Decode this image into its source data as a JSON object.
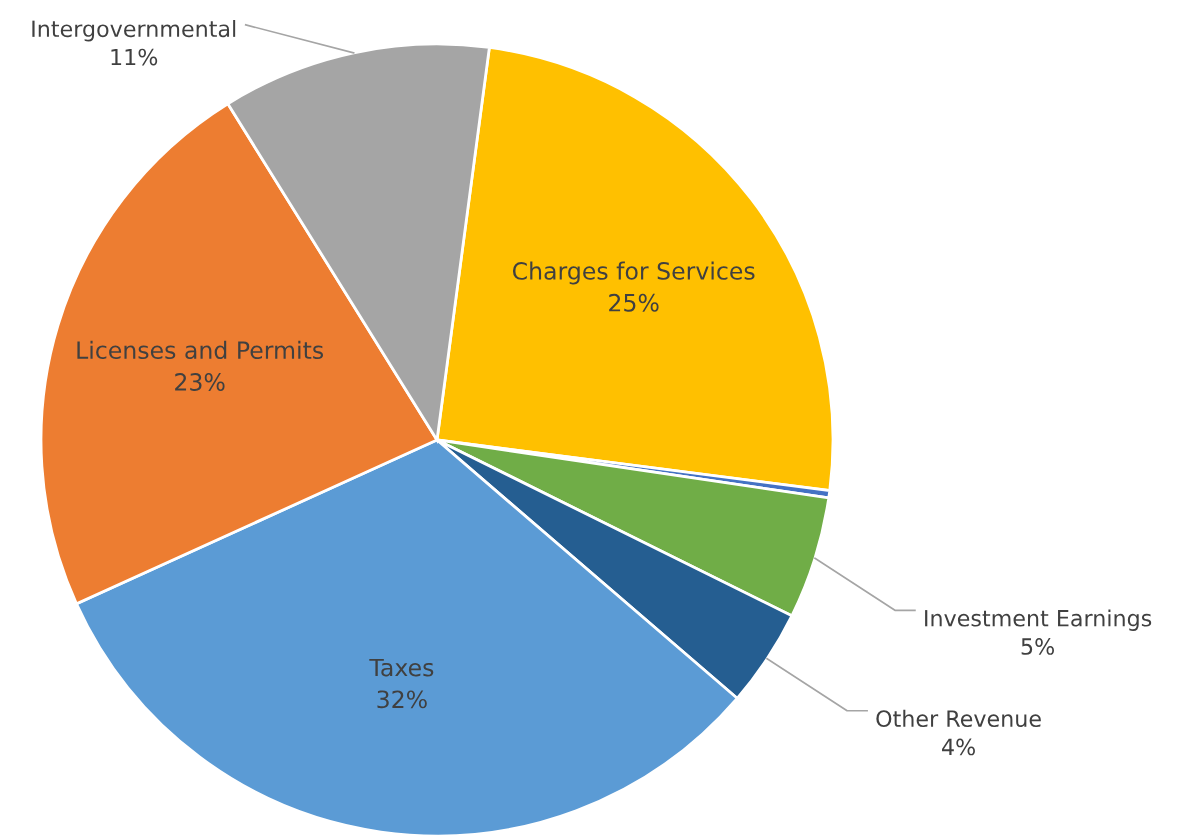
{
  "chart_data": {
    "type": "pie",
    "categories": [
      "Charges for Services",
      null,
      "Investment Earnings",
      "Other Revenue",
      "Taxes",
      "Licenses and Permits",
      "Intergovernmental"
    ],
    "values": [
      25,
      0.3,
      5,
      4,
      32,
      23,
      11
    ],
    "value_labels": [
      "25%",
      null,
      "5%",
      "4%",
      "32%",
      "23%",
      "11%"
    ],
    "colors": [
      "#ffc000",
      "#4472c4",
      "#70ad47",
      "#255e91",
      "#5b9bd5",
      "#ed7d31",
      "#a5a5a5"
    ],
    "legend": false
  }
}
